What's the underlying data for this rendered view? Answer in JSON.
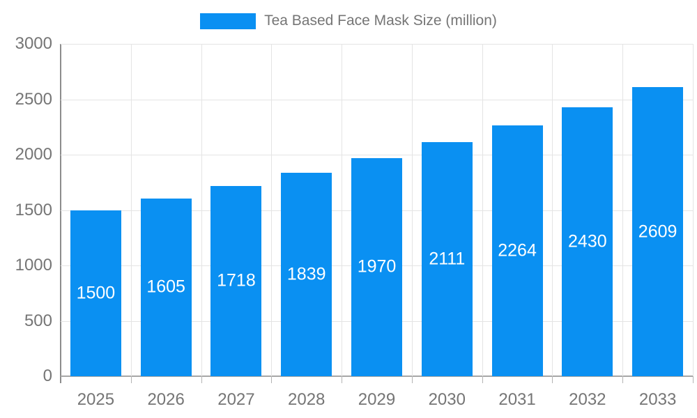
{
  "legend": {
    "label": "Tea Based Face Mask Size (million)"
  },
  "colors": {
    "bar": "#0a90f2",
    "bar_label": "#ffffff",
    "axis_text": "#757575",
    "gridline": "#e4e4e4",
    "y_axis_line": "#8c8c8c",
    "x_axis_line": "#a6a6a6"
  },
  "chart_data": {
    "type": "bar",
    "title": "Tea Based Face Mask Size (million)",
    "categories": [
      "2025",
      "2026",
      "2027",
      "2028",
      "2029",
      "2030",
      "2031",
      "2032",
      "2033"
    ],
    "values": [
      1500,
      1605,
      1718,
      1839,
      1970,
      2111,
      2264,
      2430,
      2609
    ],
    "xlabel": "",
    "ylabel": "",
    "ylim": [
      0,
      3000
    ],
    "ytick_step": 500,
    "yticks": [
      "0",
      "500",
      "1000",
      "1500",
      "2000",
      "2500",
      "3000"
    ],
    "grid": true,
    "legend_position": "top-center",
    "bar_labels_visible": true
  }
}
